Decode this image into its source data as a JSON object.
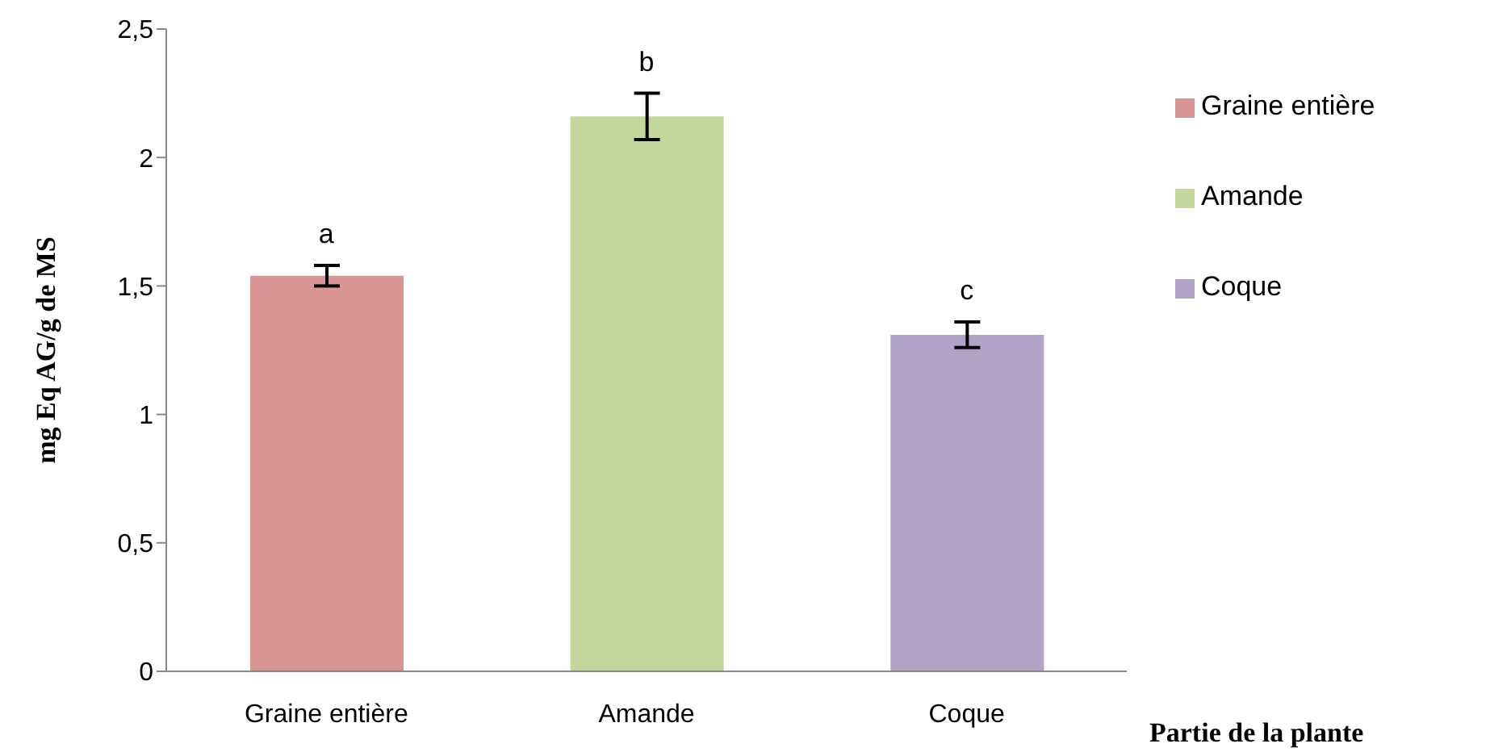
{
  "chart_data": {
    "type": "bar",
    "ylabel": "mg Eq AG/g de MS",
    "xlabel": "Partie de la plante",
    "categories": [
      "Graine entière",
      "Amande",
      "Coque"
    ],
    "stacked": true,
    "series": [
      {
        "name": "Graine entière",
        "color": "#d99594",
        "values": [
          1.54,
          null,
          null
        ],
        "errors": [
          0.04,
          null,
          null
        ]
      },
      {
        "name": "Amande",
        "color": "#c3d69b",
        "values": [
          null,
          2.16,
          null
        ],
        "errors": [
          null,
          0.09,
          null
        ]
      },
      {
        "name": "Coque",
        "color": "#b2a2c7",
        "values": [
          null,
          null,
          1.31
        ],
        "errors": [
          null,
          null,
          0.05
        ]
      }
    ],
    "ylim": [
      0,
      2.5
    ],
    "yticks": [
      0,
      {
        "value": 0.5,
        "label": "0,5"
      },
      1,
      {
        "value": 1.5,
        "label": "1,5"
      },
      2,
      {
        "value": 2.5,
        "label": "2,5"
      }
    ],
    "grid": false,
    "legend": "top right",
    "annotations": [
      "a",
      "b",
      "c"
    ]
  }
}
